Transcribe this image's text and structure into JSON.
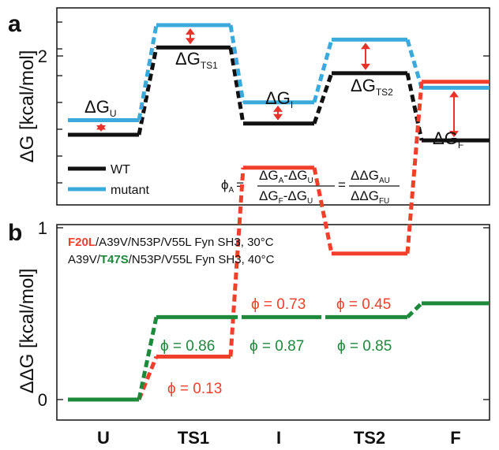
{
  "colors": {
    "wt": "#111111",
    "mutant": "#3aaadc",
    "arrow": "#e8322b",
    "red_series": "#f0402c",
    "green_series": "#1c8a3a"
  },
  "panel_a": {
    "letter": "a",
    "ylabel": "ΔG [kcal/mol]",
    "legend": [
      {
        "label": "WT",
        "color": "#111111"
      },
      {
        "label": "mutant",
        "color": "#3aaadc"
      }
    ],
    "level_labels": [
      {
        "main": "ΔG",
        "sub": "U"
      },
      {
        "main": "ΔG",
        "sub": "TS1"
      },
      {
        "main": "ΔG",
        "sub": "I"
      },
      {
        "main": "ΔG",
        "sub": "TS2"
      },
      {
        "main": "ΔG",
        "sub": "F"
      }
    ],
    "formula": {
      "phi": "ϕ",
      "phi_sub": "A",
      "eq": "=",
      "num1": {
        "a": "ΔG",
        "a_sub": "A",
        "op": "-",
        "b": "ΔG",
        "b_sub": "U"
      },
      "den1": {
        "a": "ΔG",
        "a_sub": "F",
        "op": "-",
        "b": "ΔG",
        "b_sub": "U"
      },
      "num2": {
        "a": "ΔΔG",
        "a_sub": "AU"
      },
      "den2": {
        "a": "ΔΔG",
        "a_sub": "FU"
      }
    }
  },
  "panel_b": {
    "letter": "b",
    "mutant_labels": [
      {
        "highlight": "F20L",
        "rest": "/A39V/N53P/V55L Fyn SH3, 30°C",
        "highlight_first": true,
        "color": "#f0402c"
      },
      {
        "prefix": "A39V/",
        "highlight": "T47S",
        "rest": "/N53P/V55L Fyn SH3, 40°C",
        "color": "#1c8a3a"
      }
    ]
  },
  "chart_data": [
    {
      "type": "line",
      "title": "",
      "ylabel": "ΔG [kcal/mol]",
      "categories": [
        "U",
        "TS1",
        "I",
        "TS2",
        "F"
      ],
      "series": [
        {
          "name": "WT",
          "relative_levels": [
            0.0,
            0.78,
            0.1,
            0.55,
            -0.05
          ]
        },
        {
          "name": "mutant",
          "relative_levels": [
            0.13,
            0.98,
            0.29,
            0.85,
            0.42
          ]
        }
      ],
      "note": ""
    },
    {
      "type": "line",
      "title": "",
      "ylabel": "ΔΔG [kcal/mol]",
      "categories": [
        "U",
        "TS1",
        "I",
        "TS2",
        "F"
      ],
      "ylim": [
        0,
        2
      ],
      "yticks": [
        0,
        1,
        2
      ],
      "series": [
        {
          "name": "F20L/A39V/N53P/V55L Fyn SH3, 30°C",
          "values": [
            0.0,
            0.25,
            1.35,
            0.85,
            1.85
          ],
          "phi_labels": [
            "",
            "ϕ = 0.13",
            "ϕ = 0.73",
            "ϕ = 0.45",
            ""
          ]
        },
        {
          "name": "A39V/T47S/N53P/V55L Fyn SH3, 40°C",
          "values": [
            0.0,
            0.48,
            0.48,
            0.48,
            0.56
          ],
          "phi_labels": [
            "",
            "ϕ = 0.86",
            "ϕ = 0.87",
            "ϕ = 0.85",
            ""
          ]
        }
      ]
    }
  ]
}
